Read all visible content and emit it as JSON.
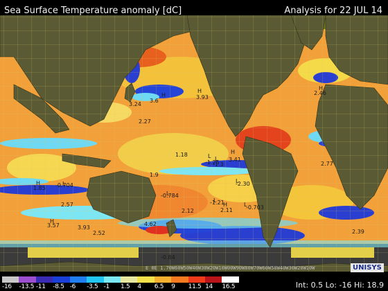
{
  "header": {
    "title": "Sea Surface Temperature anomaly [dC]",
    "date": "Analysis for 22 JUL 14"
  },
  "legend": {
    "ticks": [
      "-16",
      "-13.5",
      "-11",
      "-8.5",
      "-6",
      "-3.5",
      "-1",
      "1.5",
      "4",
      "6.5",
      "9",
      "11.5",
      "14",
      "16.5"
    ],
    "colors": [
      "#c8c8c8",
      "#9b4fd0",
      "#3a2bb5",
      "#1a3fd8",
      "#1f7ff0",
      "#22c6f5",
      "#7be8f5",
      "#e8e8a0",
      "#f5e24a",
      "#f5b030",
      "#f57a20",
      "#f03a1a",
      "#b8141a",
      "#ffffff"
    ]
  },
  "stats": "Int: 0.5 Lo: -16 Hi: 18.9",
  "logo": "UNISYS",
  "lon_labels": "E 0E 1.70W60W50W40W30W20W10W00W90W80W70W60W50W40W30W20W10W",
  "markers": [
    {
      "type": "H",
      "value": "3.93"
    },
    {
      "type": "",
      "value": "3.6"
    },
    {
      "type": "H",
      "value": "3.24"
    },
    {
      "type": "",
      "value": "2.27"
    },
    {
      "type": "H",
      "value": "2.46"
    },
    {
      "type": "L",
      "value": "-1.3"
    },
    {
      "type": "L",
      "value": "-1.25"
    },
    {
      "type": "",
      "value": "1.18"
    },
    {
      "type": "H",
      "value": "3.41"
    },
    {
      "type": "",
      "value": "1.9"
    },
    {
      "type": "H",
      "value": "1.85"
    },
    {
      "type": "L",
      "value": "-0.704"
    },
    {
      "type": "L",
      "value": "-0.784"
    },
    {
      "type": "",
      "value": "2.57"
    },
    {
      "type": "",
      "value": "2.12"
    },
    {
      "type": "L",
      "value": "-1.21"
    },
    {
      "type": "H",
      "value": "2.11"
    },
    {
      "type": "L",
      "value": "-0.703"
    },
    {
      "type": "L",
      "value": "-2.30"
    },
    {
      "type": "",
      "value": "2.77"
    },
    {
      "type": "H",
      "value": "3.57"
    },
    {
      "type": "",
      "value": "3.93"
    },
    {
      "type": "",
      "value": "2.52"
    },
    {
      "type": "",
      "value": "4.62"
    },
    {
      "type": "",
      "value": "-0.84"
    },
    {
      "type": "",
      "value": "2.39"
    }
  ]
}
